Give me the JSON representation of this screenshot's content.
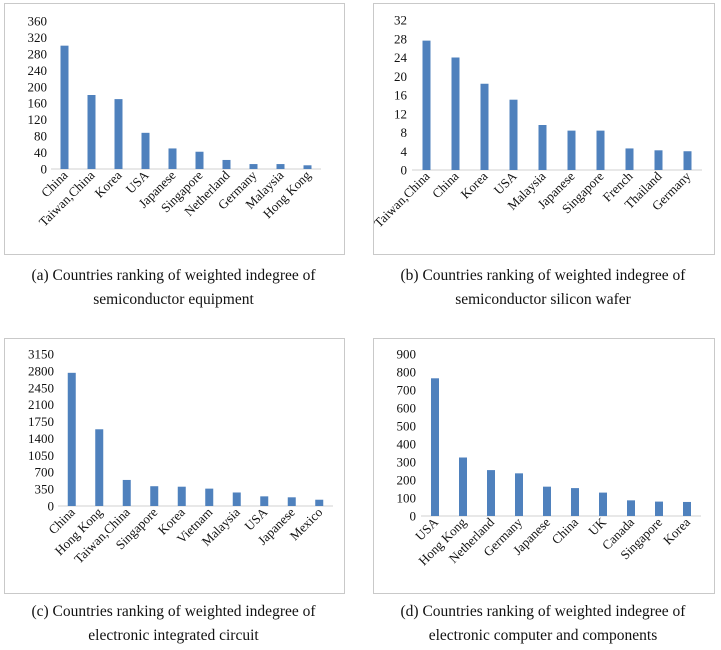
{
  "chart_data": [
    {
      "type": "bar",
      "categories": [
        "China",
        "Taiwan,China",
        "Korea",
        "USA",
        "Japanese",
        "Singapore",
        "Netherland",
        "Germany",
        "Malaysia",
        "Hong Kong"
      ],
      "values": [
        300,
        180,
        170,
        88,
        50,
        42,
        22,
        12,
        12,
        9
      ],
      "yticks": [
        "0",
        "40",
        "80",
        "120",
        "160",
        "200",
        "240",
        "280",
        "320",
        "360"
      ],
      "ylim": [
        0,
        360
      ],
      "color": "#4f81bd",
      "caption_line1": "(a) Countries ranking of weighted indegree of",
      "caption_line2": "semiconductor equipment"
    },
    {
      "type": "bar",
      "categories": [
        "Taiwan,China",
        "China",
        "Korea",
        "USA",
        "Malaysia",
        "Japanese",
        "Singapore",
        "French",
        "Thailand",
        "Germany"
      ],
      "values": [
        27.6,
        24,
        18.4,
        15,
        9.6,
        8.4,
        8.4,
        4.6,
        4.2,
        4
      ],
      "yticks": [
        "0",
        "4",
        "8",
        "12",
        "16",
        "20",
        "24",
        "28",
        "32"
      ],
      "ylim": [
        0,
        32
      ],
      "color": "#4f81bd",
      "caption_line1": "(b) Countries ranking of weighted indegree of",
      "caption_line2": "semiconductor silicon wafer"
    },
    {
      "type": "bar",
      "categories": [
        "China",
        "Hong Kong",
        "Taiwan,China",
        "Singapore",
        "Korea",
        "Vietnam",
        "Malaysia",
        "USA",
        "Japanese",
        "Mexico"
      ],
      "values": [
        2760,
        1590,
        540,
        410,
        400,
        360,
        280,
        200,
        180,
        130
      ],
      "yticks": [
        "0",
        "350",
        "700",
        "1050",
        "1400",
        "1750",
        "2100",
        "2450",
        "2800",
        "3150"
      ],
      "ylim": [
        0,
        3150
      ],
      "color": "#4f81bd",
      "caption_line1": "(c) Countries ranking of weighted indegree of",
      "caption_line2": "electronic integrated circuit"
    },
    {
      "type": "bar",
      "categories": [
        "USA",
        "Hong Kong",
        "Netherland",
        "Germany",
        "Japanese",
        "China",
        "UK",
        "Canada",
        "Singapore",
        "Korea"
      ],
      "values": [
        765,
        325,
        255,
        237,
        163,
        155,
        130,
        87,
        80,
        78
      ],
      "yticks": [
        "0",
        "100",
        "200",
        "300",
        "400",
        "500",
        "600",
        "700",
        "800",
        "900"
      ],
      "ylim": [
        0,
        900
      ],
      "color": "#4f81bd",
      "caption_line1": "(d) Countries ranking of weighted indegree of",
      "caption_line2": "electronic computer and components"
    }
  ]
}
